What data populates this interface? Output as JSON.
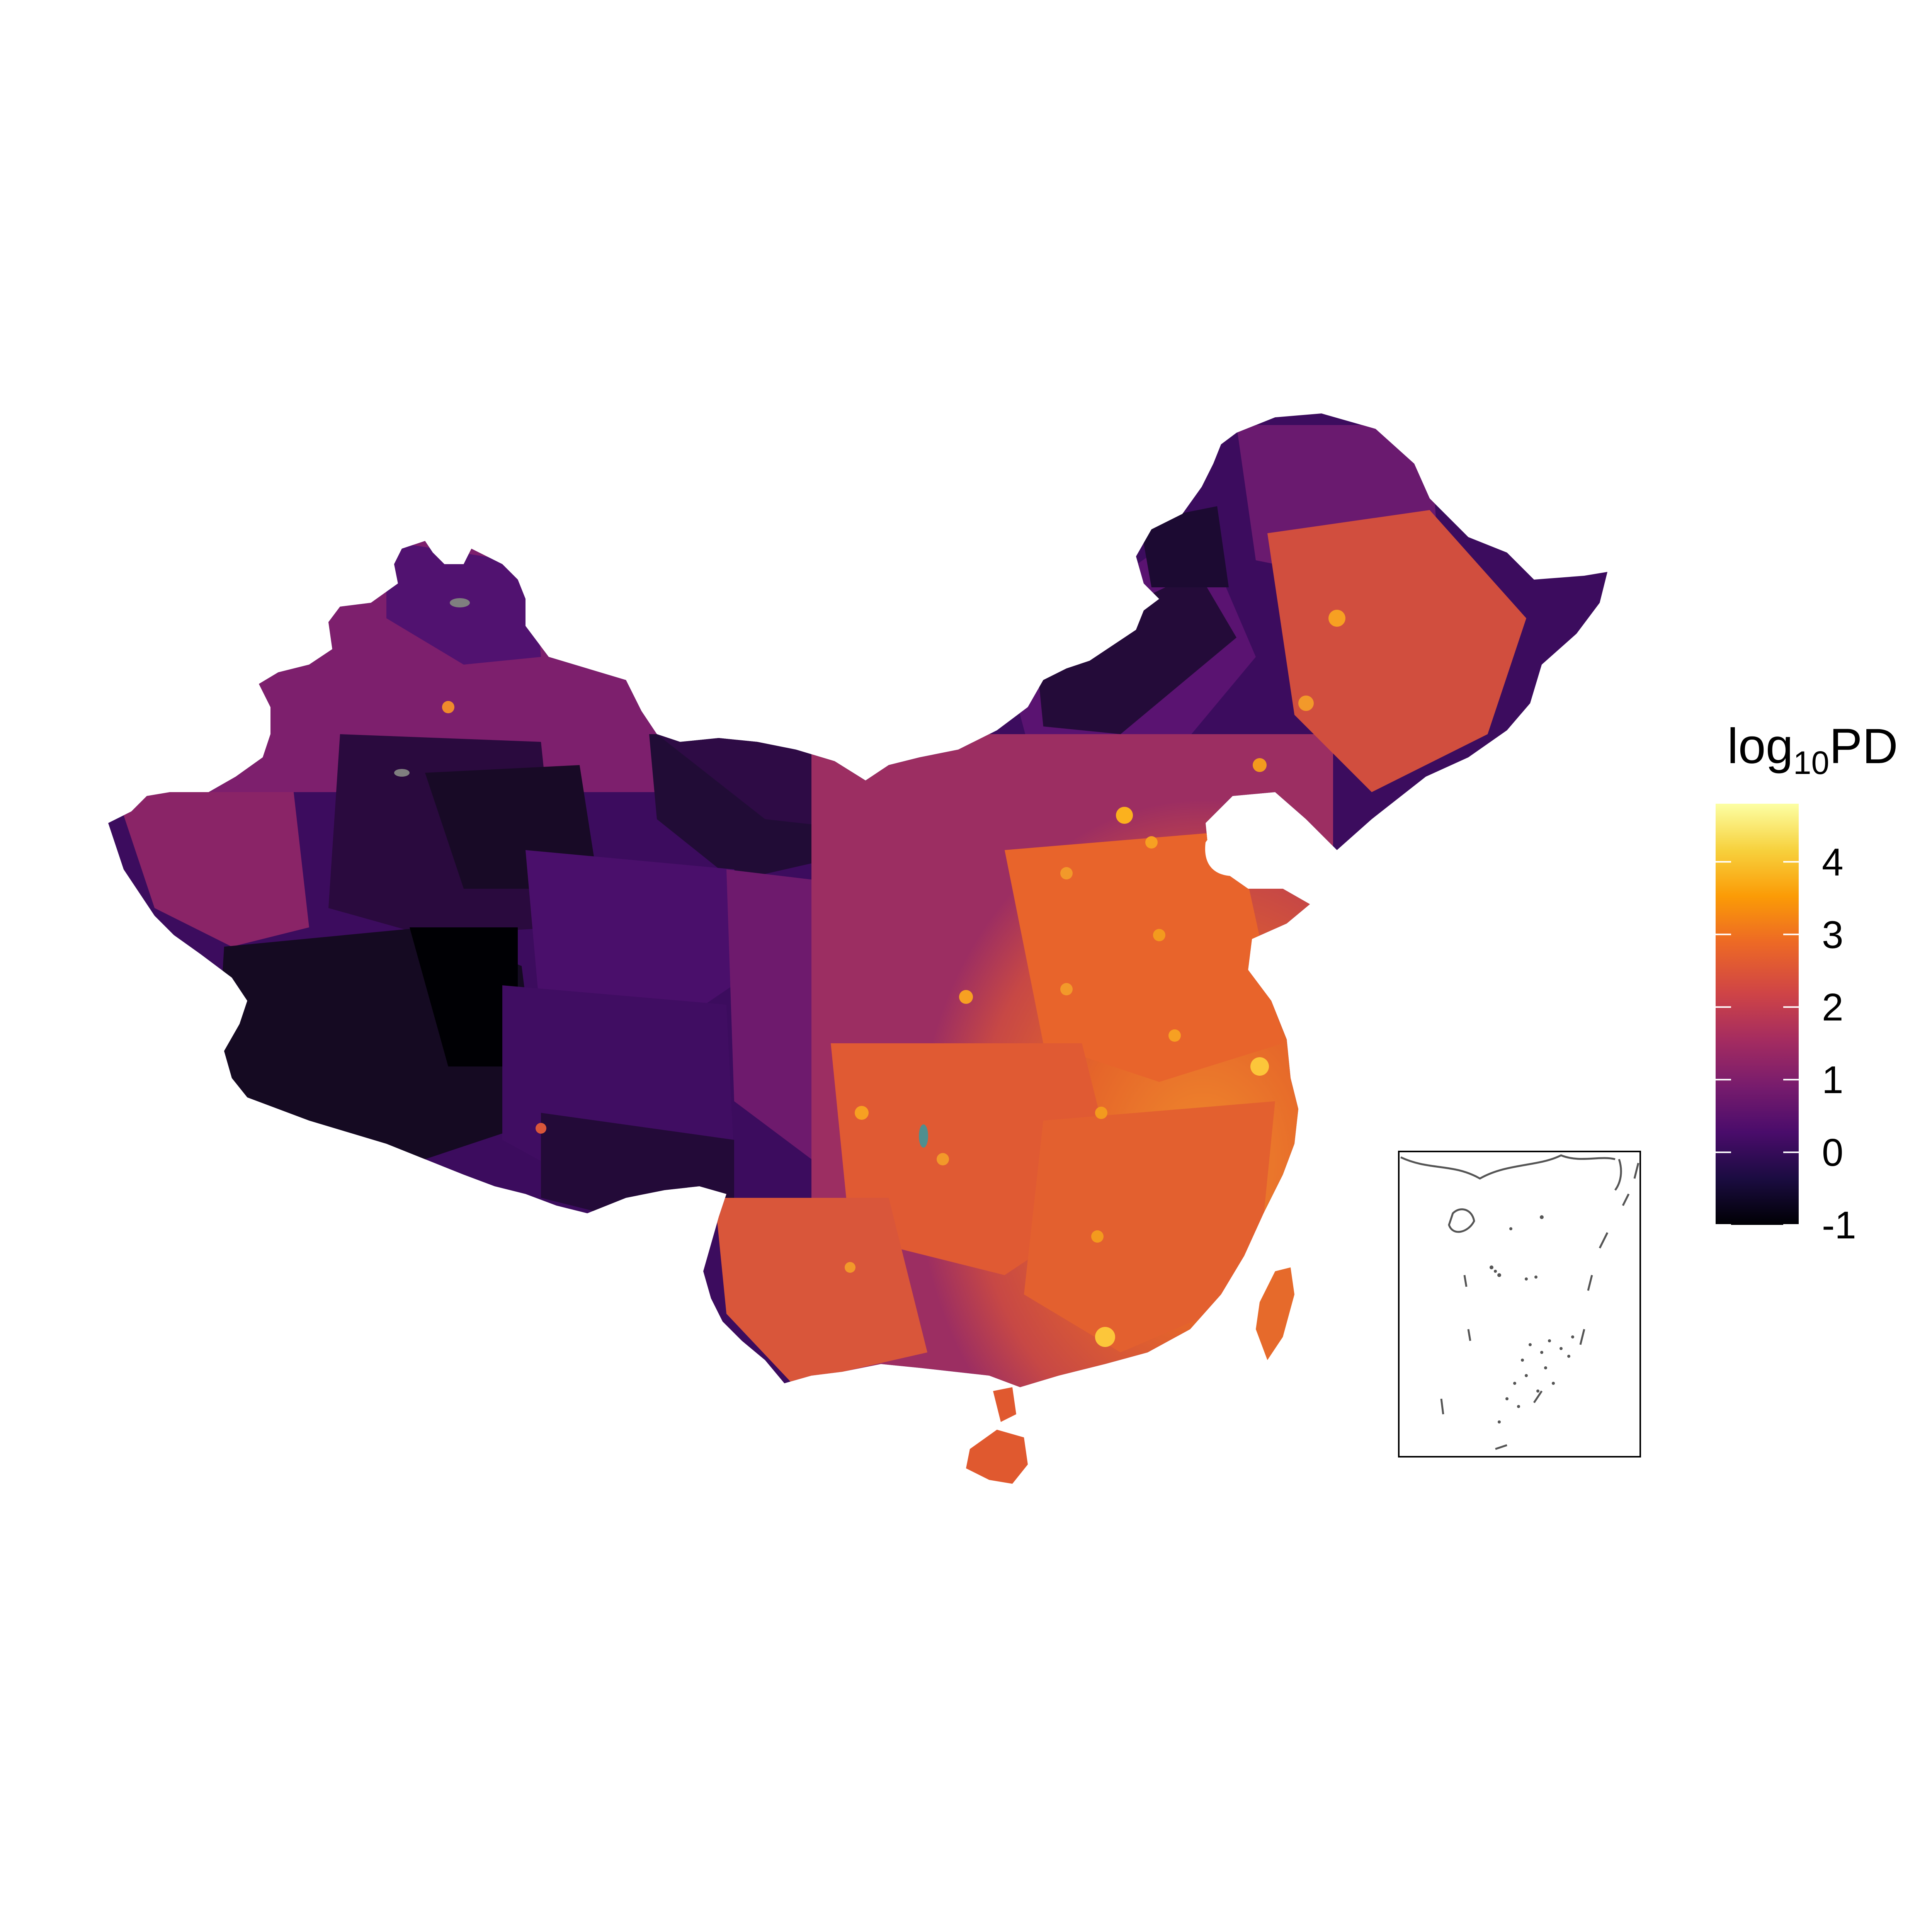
{
  "legend": {
    "title_main": "log",
    "title_sub": "10",
    "title_suffix": "PD",
    "range": [
      -1,
      4.8
    ],
    "ticks": [
      {
        "value": 4,
        "label": "4"
      },
      {
        "value": 3,
        "label": "3"
      },
      {
        "value": 2,
        "label": "2"
      },
      {
        "value": 1,
        "label": "1"
      },
      {
        "value": 0,
        "label": "0"
      },
      {
        "value": -1,
        "label": "-1"
      }
    ],
    "palette": "inferno",
    "colors": [
      "#000004",
      "#1b0c41",
      "#4a0c6b",
      "#781c6d",
      "#a52c60",
      "#cf4446",
      "#ed6925",
      "#fb9b06",
      "#f7d13d",
      "#fcffa4"
    ]
  },
  "map": {
    "regions": [
      {
        "id": "northwest",
        "value": 1.0
      },
      {
        "id": "central-west",
        "value": -0.2
      },
      {
        "id": "tibet",
        "value": -0.7
      },
      {
        "id": "inner-mongolia",
        "value": 0.6
      },
      {
        "id": "northeast",
        "value": 2.3
      },
      {
        "id": "north-china-plain",
        "value": 2.7
      },
      {
        "id": "south-china",
        "value": 2.4
      },
      {
        "id": "hainan",
        "value": 2.3
      },
      {
        "id": "taiwan",
        "value": 2.6
      }
    ],
    "missing_color": "#7f7f7f",
    "inset": {
      "frame_color": "#000000",
      "line_color": "#555555"
    }
  }
}
